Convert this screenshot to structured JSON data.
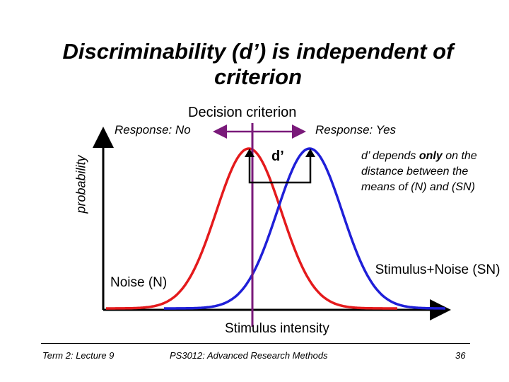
{
  "title": "Discriminability (d’) is independent of criterion",
  "decision_criterion": "Decision criterion",
  "response_no": "Response: No",
  "response_yes": "Response: Yes",
  "y_axis_label": "probability",
  "x_axis_label": "Stimulus intensity",
  "d_prime_label": "d’",
  "note": {
    "prefix": "d’ depends ",
    "bold": "only",
    "suffix": " on the distance between the means of (N) and (SN)"
  },
  "noise_label": "Noise (N)",
  "signal_noise_label": "Stimulus+Noise (SN)",
  "footer": {
    "left": "Term 2: Lecture 9",
    "center": "PS3012: Advanced Research Methods",
    "page": "36"
  },
  "colors": {
    "noise_curve": "#e41a1c",
    "signal_curve": "#1f1fd8",
    "criterion_line": "#7a1a7a",
    "axes": "#000000"
  }
}
